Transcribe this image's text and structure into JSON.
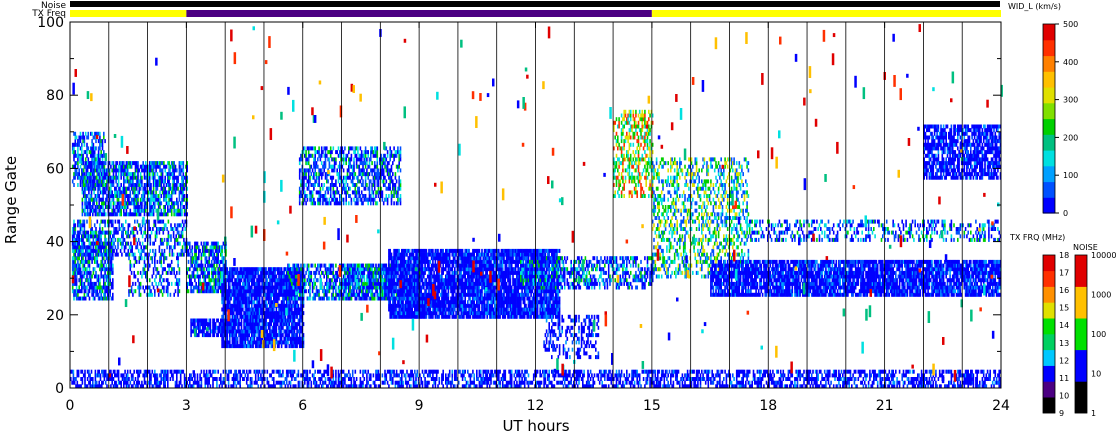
{
  "chart_data": {
    "type": "heatmap",
    "xlabel": "UT hours",
    "ylabel": "Range Gate",
    "xlim": [
      0,
      24
    ],
    "ylim": [
      0,
      100
    ],
    "x_ticks": [
      "0",
      "3",
      "6",
      "9",
      "12",
      "15",
      "18",
      "21",
      "24"
    ],
    "y_ticks": [
      "0",
      "20",
      "40",
      "60",
      "80",
      "100"
    ],
    "grid": "vertical lines each hour",
    "top_bars": {
      "noise_label": "Noise",
      "txfreq_label": "TX Freq",
      "noise_color": "#000000",
      "segments": [
        {
          "start": 0,
          "end": 3,
          "color": "#ffff00"
        },
        {
          "start": 3,
          "end": 15,
          "color": "#4b0082"
        },
        {
          "start": 15,
          "end": 24,
          "color": "#ffff00"
        }
      ]
    },
    "colorbars": [
      {
        "title": "WID_L (km/s)",
        "ticks": [
          "0",
          "100",
          "200",
          "300",
          "400",
          "500"
        ],
        "range": [
          0,
          500
        ],
        "colors": [
          "#0000ff",
          "#0050ff",
          "#00a0ff",
          "#00e0e0",
          "#00c080",
          "#00d000",
          "#80e000",
          "#e0e000",
          "#ffc000",
          "#ff8000",
          "#ff3000",
          "#e00000"
        ]
      },
      {
        "title": "TX FRQ (MHz)",
        "ticks": [
          "9",
          "10",
          "11",
          "12",
          "13",
          "14",
          "15",
          "16",
          "17",
          "18"
        ],
        "colors": [
          "#000000",
          "#4b0082",
          "#0000ff",
          "#00c8ff",
          "#00d060",
          "#00e000",
          "#e0e000",
          "#ff9000",
          "#ff3000",
          "#e00000"
        ]
      },
      {
        "title": "NOISE",
        "ticks": [
          "1",
          "10",
          "100",
          "1000",
          "10000"
        ],
        "colors": [
          "#000000",
          "#0000ff",
          "#00e000",
          "#ffc000",
          "#e00000"
        ]
      }
    ],
    "series": [
      {
        "t0": 0.05,
        "t1": 0.9,
        "g0": 55,
        "g1": 70,
        "w": 1,
        "d": 0.6
      },
      {
        "t0": 0.3,
        "t1": 3.0,
        "g0": 47,
        "g1": 62,
        "w": 1,
        "d": 0.75
      },
      {
        "t0": 0.05,
        "t1": 1.1,
        "g0": 24,
        "g1": 43,
        "w": 1,
        "d": 0.7
      },
      {
        "t0": 0.05,
        "t1": 3.0,
        "g0": 36,
        "g1": 46,
        "w": 1,
        "d": 0.45
      },
      {
        "t0": 1.5,
        "t1": 2.8,
        "g0": 25,
        "g1": 36,
        "w": 1,
        "d": 0.35
      },
      {
        "t0": 3.0,
        "t1": 4.0,
        "g0": 26,
        "g1": 40,
        "w": 1,
        "d": 0.75
      },
      {
        "t0": 3.1,
        "t1": 4.2,
        "g0": 14,
        "g1": 19,
        "w": 0,
        "d": 0.7
      },
      {
        "t0": 3.9,
        "t1": 6.0,
        "g0": 11,
        "g1": 33,
        "w": 0,
        "d": 0.9
      },
      {
        "t0": 5.6,
        "t1": 8.2,
        "g0": 24,
        "g1": 34,
        "w": 1,
        "d": 0.55
      },
      {
        "t0": 5.9,
        "t1": 8.5,
        "g0": 50,
        "g1": 66,
        "w": 1,
        "d": 0.55
      },
      {
        "t0": 7.0,
        "t1": 9.0,
        "g0": 24,
        "g1": 34,
        "w": 1,
        "d": 0.75
      },
      {
        "t0": 8.2,
        "t1": 12.6,
        "g0": 19,
        "g1": 38,
        "w": 0,
        "d": 0.9
      },
      {
        "t0": 11.6,
        "t1": 15.0,
        "g0": 27,
        "g1": 36,
        "w": 1,
        "d": 0.55
      },
      {
        "t0": 12.2,
        "t1": 13.6,
        "g0": 8,
        "g1": 20,
        "w": 0,
        "d": 0.35
      },
      {
        "t0": 14.0,
        "t1": 15.0,
        "g0": 52,
        "g1": 76,
        "w": 3,
        "d": 0.45
      },
      {
        "t0": 15.0,
        "t1": 17.5,
        "g0": 30,
        "g1": 63,
        "w": 2,
        "d": 0.4
      },
      {
        "t0": 16.5,
        "t1": 24.0,
        "g0": 25,
        "g1": 35,
        "w": 0,
        "d": 0.85
      },
      {
        "t0": 17.5,
        "t1": 24.0,
        "g0": 40,
        "g1": 46,
        "w": 1,
        "d": 0.35
      },
      {
        "t0": 22.0,
        "t1": 24.0,
        "g0": 57,
        "g1": 72,
        "w": 0,
        "d": 0.75
      },
      {
        "t0": 0.0,
        "t1": 24.0,
        "g0": 0,
        "g1": 5,
        "w": 0,
        "d": 0.55
      }
    ]
  }
}
